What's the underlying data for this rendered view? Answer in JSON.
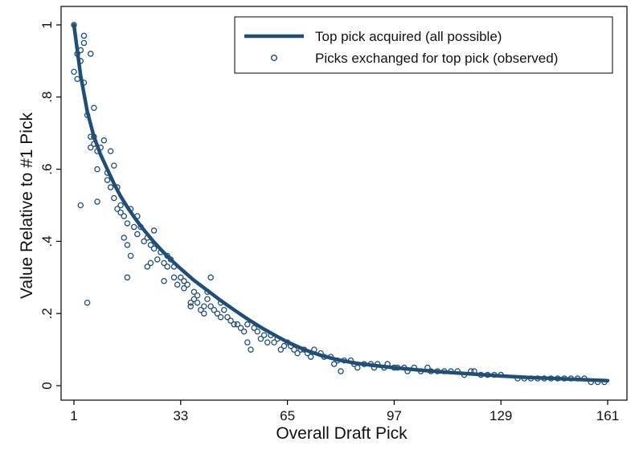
{
  "chart_data": {
    "type": "scatter",
    "title": "",
    "xlabel": "Overall Draft Pick",
    "ylabel": "Value Relative to #1 Pick",
    "xlim": [
      1,
      161
    ],
    "ylim": [
      0,
      1
    ],
    "x_ticks": [
      1,
      33,
      65,
      97,
      129,
      161
    ],
    "y_ticks": [
      0,
      0.2,
      0.4,
      0.6,
      0.8,
      1
    ],
    "y_tick_labels": [
      "0",
      ".2",
      ".4",
      ".6",
      ".8",
      "1"
    ],
    "grid": false,
    "legend_position": "top-right",
    "colors": {
      "series": "#1f4e79",
      "frame": "#000000",
      "background": "#ffffff"
    },
    "series": [
      {
        "name": "Top pick acquired (all possible)",
        "kind": "line",
        "x": [
          1,
          3,
          5,
          7,
          9,
          11,
          13,
          15,
          17,
          19,
          21,
          23,
          25,
          27,
          29,
          31,
          33,
          37,
          41,
          45,
          49,
          53,
          57,
          61,
          65,
          70,
          75,
          80,
          85,
          90,
          97,
          105,
          113,
          121,
          129,
          137,
          145,
          153,
          161
        ],
        "values": [
          1.0,
          0.86,
          0.76,
          0.69,
          0.64,
          0.6,
          0.56,
          0.525,
          0.495,
          0.468,
          0.443,
          0.42,
          0.398,
          0.378,
          0.359,
          0.341,
          0.324,
          0.292,
          0.264,
          0.236,
          0.21,
          0.185,
          0.162,
          0.141,
          0.121,
          0.1,
          0.084,
          0.072,
          0.063,
          0.057,
          0.05,
          0.043,
          0.037,
          0.032,
          0.027,
          0.023,
          0.02,
          0.017,
          0.014
        ]
      },
      {
        "name": "Picks exchanged for top pick (observed)",
        "kind": "scatter",
        "points": [
          [
            1,
            1.0
          ],
          [
            1,
            0.87
          ],
          [
            2,
            0.92
          ],
          [
            2,
            0.85
          ],
          [
            3,
            0.9
          ],
          [
            3,
            0.93
          ],
          [
            3,
            0.5
          ],
          [
            4,
            0.97
          ],
          [
            4,
            0.95
          ],
          [
            4,
            0.84
          ],
          [
            5,
            0.23
          ],
          [
            5,
            0.75
          ],
          [
            6,
            0.92
          ],
          [
            6,
            0.69
          ],
          [
            6,
            0.66
          ],
          [
            7,
            0.77
          ],
          [
            7,
            0.69
          ],
          [
            7,
            0.67
          ],
          [
            8,
            0.65
          ],
          [
            8,
            0.6
          ],
          [
            8,
            0.51
          ],
          [
            9,
            0.66
          ],
          [
            10,
            0.68
          ],
          [
            11,
            0.59
          ],
          [
            11,
            0.57
          ],
          [
            12,
            0.65
          ],
          [
            12,
            0.55
          ],
          [
            13,
            0.61
          ],
          [
            13,
            0.52
          ],
          [
            14,
            0.55
          ],
          [
            14,
            0.49
          ],
          [
            15,
            0.5
          ],
          [
            15,
            0.48
          ],
          [
            16,
            0.41
          ],
          [
            16,
            0.47
          ],
          [
            17,
            0.39
          ],
          [
            17,
            0.3
          ],
          [
            17,
            0.45
          ],
          [
            18,
            0.49
          ],
          [
            18,
            0.36
          ],
          [
            19,
            0.44
          ],
          [
            20,
            0.47
          ],
          [
            20,
            0.42
          ],
          [
            21,
            0.44
          ],
          [
            22,
            0.4
          ],
          [
            23,
            0.33
          ],
          [
            23,
            0.41
          ],
          [
            24,
            0.34
          ],
          [
            24,
            0.39
          ],
          [
            25,
            0.43
          ],
          [
            25,
            0.38
          ],
          [
            26,
            0.35
          ],
          [
            27,
            0.37
          ],
          [
            28,
            0.29
          ],
          [
            28,
            0.34
          ],
          [
            29,
            0.36
          ],
          [
            29,
            0.33
          ],
          [
            30,
            0.35
          ],
          [
            31,
            0.33
          ],
          [
            31,
            0.3
          ],
          [
            32,
            0.28
          ],
          [
            33,
            0.3
          ],
          [
            34,
            0.29
          ],
          [
            34,
            0.27
          ],
          [
            35,
            0.28
          ],
          [
            36,
            0.23
          ],
          [
            36,
            0.22
          ],
          [
            37,
            0.26
          ],
          [
            37,
            0.24
          ],
          [
            38,
            0.23
          ],
          [
            38,
            0.25
          ],
          [
            39,
            0.21
          ],
          [
            40,
            0.2
          ],
          [
            40,
            0.22
          ],
          [
            41,
            0.24
          ],
          [
            41,
            0.26
          ],
          [
            42,
            0.3
          ],
          [
            42,
            0.22
          ],
          [
            43,
            0.21
          ],
          [
            44,
            0.2
          ],
          [
            45,
            0.23
          ],
          [
            45,
            0.19
          ],
          [
            46,
            0.21
          ],
          [
            47,
            0.19
          ],
          [
            48,
            0.18
          ],
          [
            49,
            0.17
          ],
          [
            50,
            0.17
          ],
          [
            51,
            0.16
          ],
          [
            52,
            0.15
          ],
          [
            53,
            0.17
          ],
          [
            53,
            0.12
          ],
          [
            54,
            0.1
          ],
          [
            55,
            0.16
          ],
          [
            56,
            0.15
          ],
          [
            57,
            0.13
          ],
          [
            58,
            0.14
          ],
          [
            59,
            0.12
          ],
          [
            60,
            0.14
          ],
          [
            61,
            0.12
          ],
          [
            62,
            0.13
          ],
          [
            63,
            0.1
          ],
          [
            64,
            0.11
          ],
          [
            65,
            0.12
          ],
          [
            66,
            0.11
          ],
          [
            67,
            0.1
          ],
          [
            68,
            0.09
          ],
          [
            69,
            0.1
          ],
          [
            70,
            0.1
          ],
          [
            71,
            0.09
          ],
          [
            72,
            0.08
          ],
          [
            73,
            0.1
          ],
          [
            75,
            0.09
          ],
          [
            76,
            0.08
          ],
          [
            78,
            0.08
          ],
          [
            79,
            0.06
          ],
          [
            80,
            0.07
          ],
          [
            81,
            0.04
          ],
          [
            82,
            0.07
          ],
          [
            84,
            0.07
          ],
          [
            85,
            0.06
          ],
          [
            86,
            0.05
          ],
          [
            88,
            0.06
          ],
          [
            90,
            0.06
          ],
          [
            91,
            0.05
          ],
          [
            92,
            0.06
          ],
          [
            94,
            0.05
          ],
          [
            95,
            0.06
          ],
          [
            97,
            0.05
          ],
          [
            98,
            0.05
          ],
          [
            100,
            0.05
          ],
          [
            101,
            0.04
          ],
          [
            103,
            0.05
          ],
          [
            105,
            0.04
          ],
          [
            107,
            0.05
          ],
          [
            108,
            0.04
          ],
          [
            110,
            0.04
          ],
          [
            112,
            0.04
          ],
          [
            114,
            0.04
          ],
          [
            116,
            0.04
          ],
          [
            118,
            0.03
          ],
          [
            120,
            0.04
          ],
          [
            121,
            0.04
          ],
          [
            123,
            0.03
          ],
          [
            125,
            0.03
          ],
          [
            127,
            0.03
          ],
          [
            129,
            0.03
          ],
          [
            134,
            0.02
          ],
          [
            136,
            0.02
          ],
          [
            138,
            0.02
          ],
          [
            140,
            0.02
          ],
          [
            142,
            0.02
          ],
          [
            144,
            0.02
          ],
          [
            146,
            0.02
          ],
          [
            148,
            0.02
          ],
          [
            150,
            0.02
          ],
          [
            152,
            0.02
          ],
          [
            154,
            0.02
          ],
          [
            156,
            0.01
          ],
          [
            158,
            0.01
          ],
          [
            160,
            0.01
          ]
        ]
      }
    ]
  }
}
